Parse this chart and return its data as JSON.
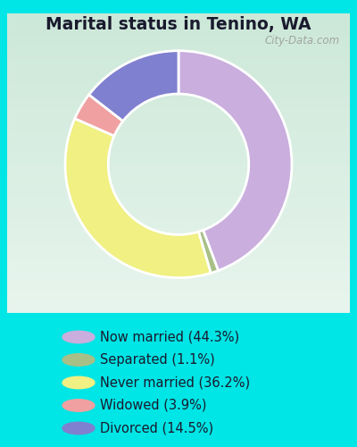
{
  "title": "Marital status in Tenino, WA",
  "categories": [
    "Now married",
    "Separated",
    "Never married",
    "Widowed",
    "Divorced"
  ],
  "values": [
    44.3,
    1.1,
    36.2,
    3.9,
    14.5
  ],
  "colors": [
    "#c9aede",
    "#a8bf87",
    "#f0f083",
    "#f0a0a0",
    "#8080d0"
  ],
  "legend_labels": [
    "Now married (44.3%)",
    "Separated (1.1%)",
    "Never married (36.2%)",
    "Widowed (3.9%)",
    "Divorced (14.5%)"
  ],
  "bg_color_outer": "#00e5e5",
  "bg_color_inner_top": "#e8f5ee",
  "bg_color_inner_bot": "#d0ebe0",
  "title_color": "#1a1a2e",
  "title_fontsize": 13.5,
  "legend_fontsize": 10.5,
  "watermark": "City-Data.com",
  "donut_width": 0.38,
  "start_angle": 90
}
